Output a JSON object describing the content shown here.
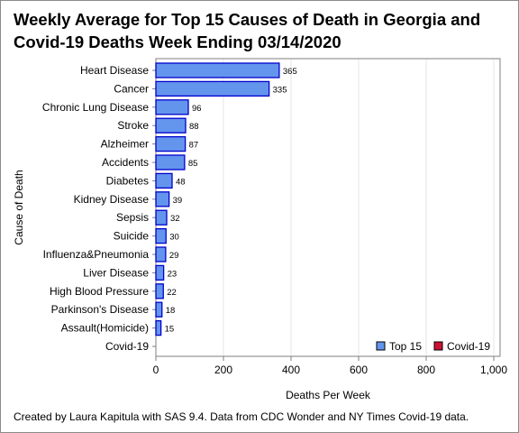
{
  "title": "Weekly Average for Top 15 Causes of Death in Georgia and Covid-19 Deaths Week Ending 03/14/2020",
  "footnote": "Created by Laura Kapitula with SAS 9.4. Data from CDC Wonder and NY Times Covid-19 data.",
  "colors": {
    "top15_fill": "#6495ED",
    "top15_stroke": "#0000CD",
    "covid_fill": "#CC1133",
    "grid": "#e6e6e6",
    "axis": "#7f7f7f"
  },
  "chart_data": {
    "type": "bar",
    "orientation": "horizontal",
    "title": "Weekly Average for Top 15 Causes of Death in Georgia and Covid-19 Deaths Week Ending 03/14/2020",
    "xlabel": "Deaths Per Week",
    "ylabel": "Cause of Death",
    "xlim": [
      0,
      1000
    ],
    "xticks": [
      0,
      200,
      400,
      600,
      800,
      1000
    ],
    "xtick_labels": [
      "0",
      "200",
      "400",
      "600",
      "800",
      "1,000"
    ],
    "grid": true,
    "legend_position": "bottom-right",
    "categories": [
      "Heart Disease",
      "Cancer",
      "Chronic Lung Disease",
      "Stroke",
      "Alzheimer",
      "Accidents",
      "Diabetes",
      "Kidney Disease",
      "Sepsis",
      "Suicide",
      "Influenza&Pneumonia",
      "Liver Disease",
      "High Blood Pressure",
      "Parkinson's Disease",
      "Assault(Homicide)",
      "Covid-19"
    ],
    "series": [
      {
        "name": "Top 15",
        "values": [
          365,
          335,
          96,
          88,
          87,
          85,
          48,
          39,
          32,
          30,
          29,
          23,
          22,
          18,
          15,
          null
        ]
      },
      {
        "name": "Covid-19",
        "values": [
          null,
          null,
          null,
          null,
          null,
          null,
          null,
          null,
          null,
          null,
          null,
          null,
          null,
          null,
          null,
          0
        ]
      }
    ]
  }
}
